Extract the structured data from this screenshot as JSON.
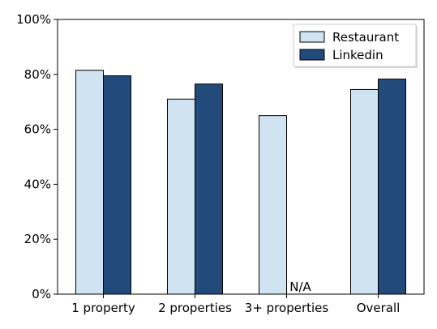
{
  "chart_data": {
    "type": "bar",
    "categories": [
      "1 property",
      "2 properties",
      "3+ properties",
      "Overall"
    ],
    "series": [
      {
        "name": "Restaurant",
        "values": [
          81.5,
          71,
          65,
          74.5
        ],
        "color": "#cfe3f1"
      },
      {
        "name": "Linkedin",
        "values": [
          79.5,
          76.5,
          null,
          78.3
        ],
        "color": "#224b7b"
      }
    ],
    "ylim": [
      0,
      100
    ],
    "yticks": [
      0,
      20,
      40,
      60,
      80,
      100
    ],
    "ytick_labels": [
      "0%",
      "20%",
      "40%",
      "60%",
      "80%",
      "100%"
    ],
    "annotations": [
      {
        "category": "3+ properties",
        "series": "Linkedin",
        "text": "N/A"
      }
    ],
    "legend_position": "top-right",
    "grid": false,
    "title": "",
    "xlabel": "",
    "ylabel": ""
  }
}
